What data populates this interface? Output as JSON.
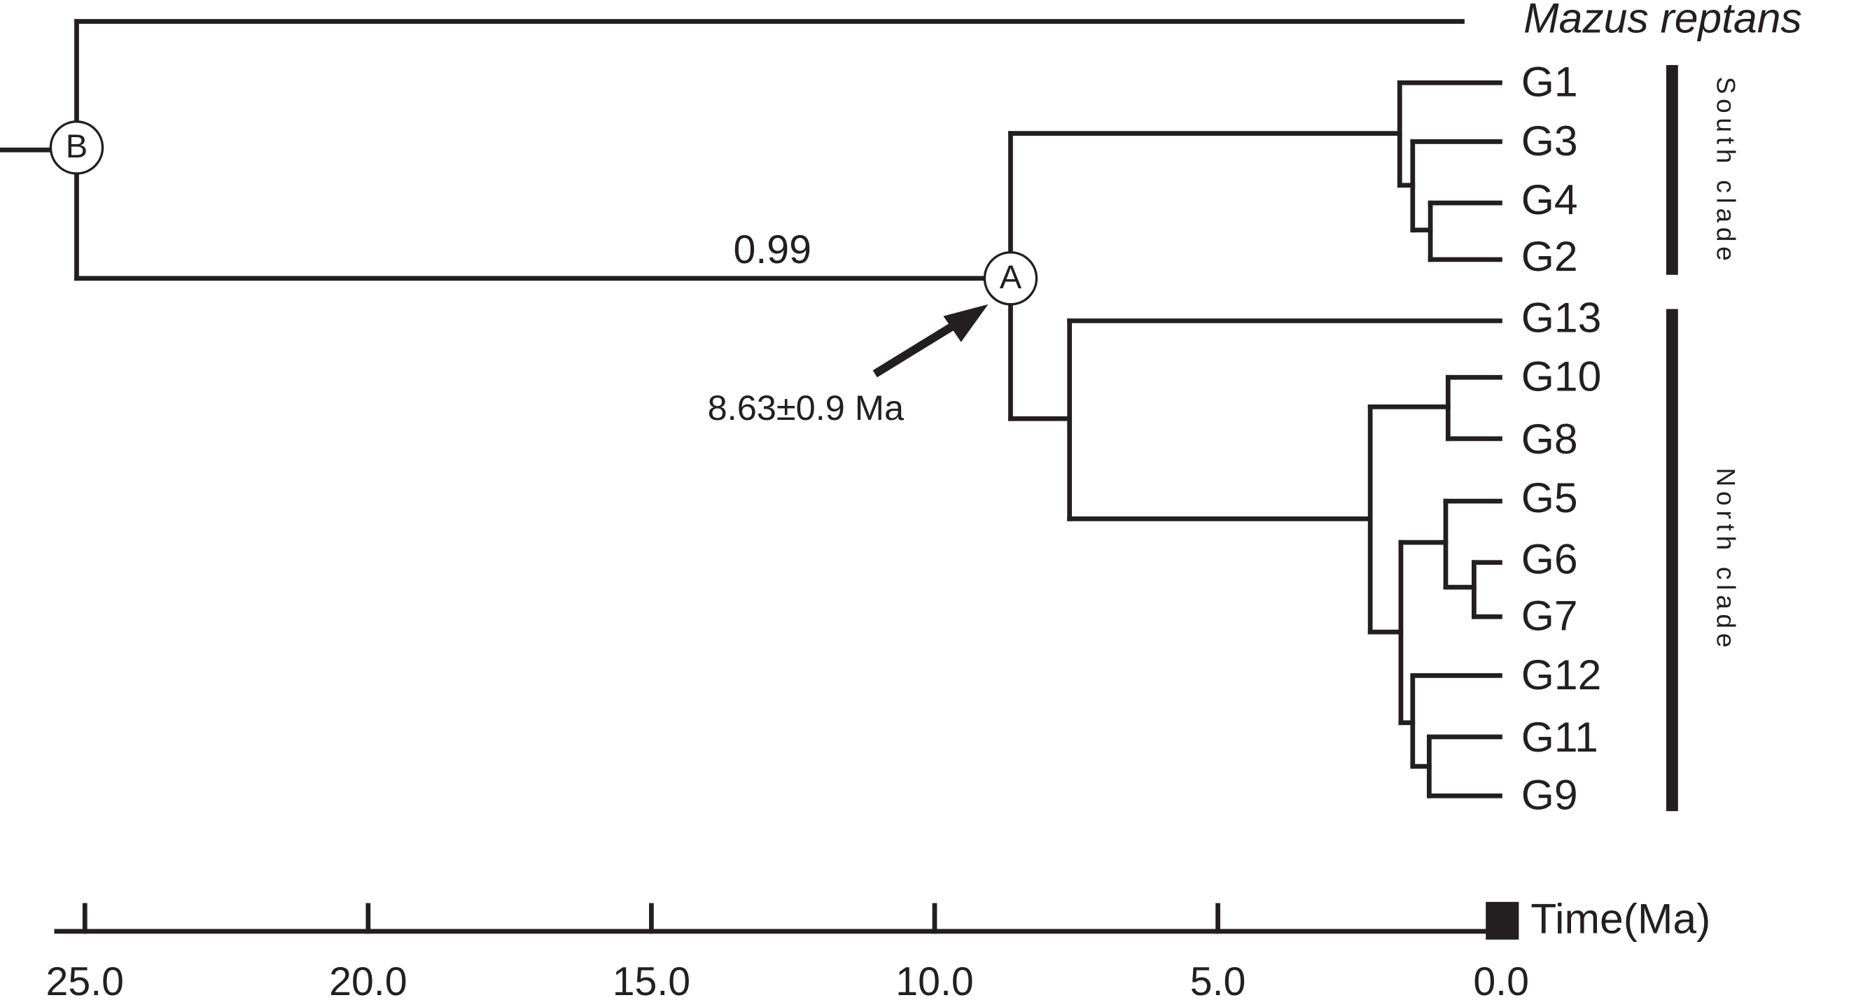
{
  "outgroup": "Mazus reptans",
  "leaves": [
    "G1",
    "G3",
    "G4",
    "G2",
    "G13",
    "G10",
    "G8",
    "G5",
    "G6",
    "G7",
    "G12",
    "G11",
    "G9"
  ],
  "clades": [
    {
      "label": "South clade"
    },
    {
      "label": "North clade"
    }
  ],
  "nodes": [
    {
      "label": "B"
    },
    {
      "label": "A"
    }
  ],
  "support": "0.99",
  "annotation": "8.63±0.9 Ma",
  "axis": {
    "title": "Time(Ma)",
    "lim": [
      25,
      0
    ],
    "ticks": [
      {
        "value": 25,
        "label": "25.0"
      },
      {
        "value": 20,
        "label": "20.0"
      },
      {
        "value": 15,
        "label": "15.0"
      },
      {
        "value": 10,
        "label": "10.0"
      },
      {
        "value": 5,
        "label": "5.0"
      },
      {
        "value": 0,
        "label": "0.0"
      }
    ]
  }
}
